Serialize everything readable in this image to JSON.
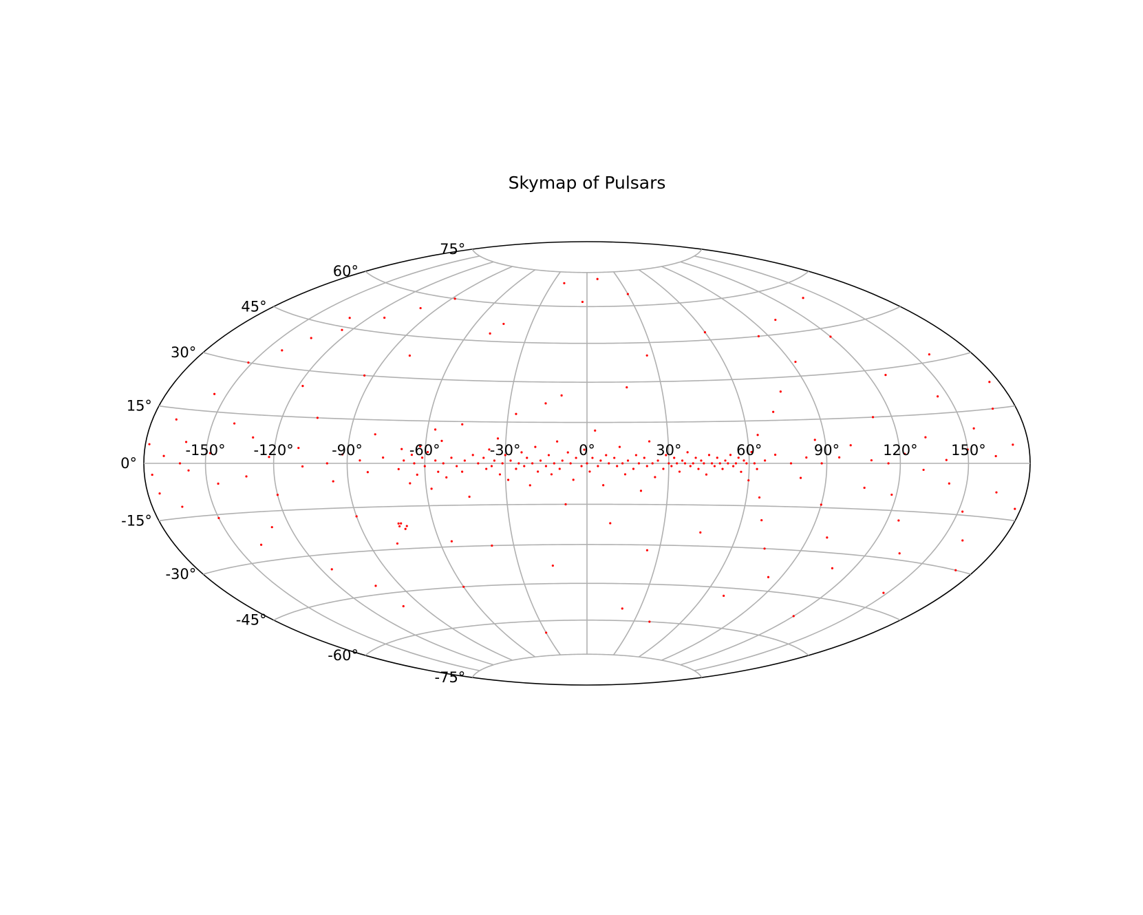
{
  "chart_data": {
    "type": "scatter",
    "projection": "hammer",
    "title": "Skymap of Pulsars",
    "xlabel": "",
    "ylabel": "",
    "xlim": [
      -180,
      180
    ],
    "ylim": [
      -90,
      90
    ],
    "grid": true,
    "marker_color": "#ff0000",
    "grid_color": "#b0b0b0",
    "x_tick_labels": [
      {
        "value": -150,
        "label": "-150°"
      },
      {
        "value": -120,
        "label": "-120°"
      },
      {
        "value": -90,
        "label": "-90°"
      },
      {
        "value": -60,
        "label": "-60°"
      },
      {
        "value": -30,
        "label": "-30°"
      },
      {
        "value": 0,
        "label": "0°"
      },
      {
        "value": 30,
        "label": "30°"
      },
      {
        "value": 60,
        "label": "60°"
      },
      {
        "value": 90,
        "label": "90°"
      },
      {
        "value": 120,
        "label": "120°"
      },
      {
        "value": 150,
        "label": "150°"
      }
    ],
    "y_tick_labels": [
      {
        "value": -75,
        "label": "-75°"
      },
      {
        "value": -60,
        "label": "-60°"
      },
      {
        "value": -45,
        "label": "-45°"
      },
      {
        "value": -30,
        "label": "-30°"
      },
      {
        "value": -15,
        "label": "-15°"
      },
      {
        "value": 0,
        "label": "0°"
      },
      {
        "value": 15,
        "label": "15°"
      },
      {
        "value": 30,
        "label": "30°"
      },
      {
        "value": 45,
        "label": "45°"
      },
      {
        "value": 60,
        "label": "60°"
      },
      {
        "value": 75,
        "label": "75°"
      }
    ],
    "series": [
      {
        "points": [
          [
            -178,
            5
          ],
          [
            -176,
            -3
          ],
          [
            -174,
            -8
          ],
          [
            -170,
            2
          ],
          [
            -168,
            12
          ],
          [
            -165,
            -12
          ],
          [
            -162,
            0
          ],
          [
            -160,
            6
          ],
          [
            -158,
            -2
          ],
          [
            -156,
            20
          ],
          [
            -152,
            30
          ],
          [
            -150,
            -16
          ],
          [
            -148,
            3
          ],
          [
            -145,
            -6
          ],
          [
            -142,
            35
          ],
          [
            -140,
            12
          ],
          [
            -138,
            -25
          ],
          [
            -135,
            40
          ],
          [
            -132,
            -4
          ],
          [
            -130,
            8
          ],
          [
            -128,
            -20
          ],
          [
            -125,
            44
          ],
          [
            -122,
            2
          ],
          [
            -120,
            -10
          ],
          [
            -118,
            25
          ],
          [
            -115,
            -35
          ],
          [
            -112,
            50
          ],
          [
            -110,
            5
          ],
          [
            -108,
            -1
          ],
          [
            -105,
            15
          ],
          [
            -102,
            -42
          ],
          [
            -100,
            55
          ],
          [
            -98,
            0
          ],
          [
            -96,
            -6
          ],
          [
            -94,
            30
          ],
          [
            -92,
            3
          ],
          [
            -90,
            -18
          ],
          [
            -88,
            60
          ],
          [
            -85,
            1
          ],
          [
            -82,
            -3
          ],
          [
            -80,
            10
          ],
          [
            -78,
            -28
          ],
          [
            -76,
            2
          ],
          [
            -74,
            -22
          ],
          [
            -73,
            -21
          ],
          [
            -72,
            -23
          ],
          [
            -71,
            -22
          ],
          [
            -74,
            -21
          ],
          [
            -70,
            -2
          ],
          [
            -69,
            5
          ],
          [
            -68,
            1
          ],
          [
            -66,
            -7
          ],
          [
            -65,
            3
          ],
          [
            -64,
            0
          ],
          [
            -63,
            -4
          ],
          [
            -62,
            6
          ],
          [
            -61,
            2
          ],
          [
            -60,
            -1
          ],
          [
            -59,
            4
          ],
          [
            -58,
            -9
          ],
          [
            -57,
            12
          ],
          [
            -56,
            1
          ],
          [
            -55,
            -3
          ],
          [
            -54,
            8
          ],
          [
            -53,
            0
          ],
          [
            -52,
            -5
          ],
          [
            -50,
            2
          ],
          [
            -49,
            48
          ],
          [
            -48,
            -1
          ],
          [
            -47,
            14
          ],
          [
            -46,
            -3
          ],
          [
            -45,
            1
          ],
          [
            -44,
            -12
          ],
          [
            -42,
            3
          ],
          [
            -40,
            0
          ],
          [
            -39,
            -30
          ],
          [
            -38,
            2
          ],
          [
            -37,
            -2
          ],
          [
            -36,
            5
          ],
          [
            -35,
            -1
          ],
          [
            -34,
            1
          ],
          [
            -33,
            9
          ],
          [
            -32,
            -4
          ],
          [
            -31,
            0
          ],
          [
            -30,
            3
          ],
          [
            -29,
            -6
          ],
          [
            -28,
            1
          ],
          [
            -27,
            18
          ],
          [
            -26,
            -2
          ],
          [
            -25,
            0
          ],
          [
            -24,
            4
          ],
          [
            -23,
            -1
          ],
          [
            -22,
            2
          ],
          [
            -21,
            -8
          ],
          [
            -20,
            0
          ],
          [
            -19,
            6
          ],
          [
            -18,
            -3
          ],
          [
            -17,
            1
          ],
          [
            -16,
            22
          ],
          [
            -15,
            -1
          ],
          [
            -14,
            3
          ],
          [
            -13,
            -4
          ],
          [
            -12,
            0
          ],
          [
            -11,
            8
          ],
          [
            -10,
            -2
          ],
          [
            -9,
            1
          ],
          [
            -8,
            -15
          ],
          [
            -7,
            4
          ],
          [
            -6,
            0
          ],
          [
            -5,
            -6
          ],
          [
            -4,
            2
          ],
          [
            -3,
            62
          ],
          [
            -2,
            -1
          ],
          [
            -1,
            5
          ],
          [
            0,
            0
          ],
          [
            1,
            -3
          ],
          [
            2,
            2
          ],
          [
            3,
            12
          ],
          [
            4,
            -1
          ],
          [
            5,
            1
          ],
          [
            6,
            -8
          ],
          [
            7,
            3
          ],
          [
            8,
            0
          ],
          [
            9,
            -22
          ],
          [
            10,
            2
          ],
          [
            11,
            -1
          ],
          [
            12,
            6
          ],
          [
            13,
            0
          ],
          [
            14,
            -4
          ],
          [
            15,
            1
          ],
          [
            16,
            28
          ],
          [
            17,
            -2
          ],
          [
            18,
            3
          ],
          [
            19,
            0
          ],
          [
            20,
            -10
          ],
          [
            21,
            2
          ],
          [
            22,
            -1
          ],
          [
            23,
            8
          ],
          [
            24,
            0
          ],
          [
            25,
            -5
          ],
          [
            26,
            1
          ],
          [
            27,
            40
          ],
          [
            28,
            -2
          ],
          [
            29,
            3
          ],
          [
            30,
            0
          ],
          [
            31,
            -1
          ],
          [
            32,
            2
          ],
          [
            33,
            0
          ],
          [
            34,
            -3
          ],
          [
            35,
            1
          ],
          [
            36,
            0
          ],
          [
            37,
            4
          ],
          [
            38,
            -1
          ],
          [
            39,
            0
          ],
          [
            40,
            2
          ],
          [
            41,
            -2
          ],
          [
            42,
            1
          ],
          [
            43,
            0
          ],
          [
            44,
            -4
          ],
          [
            45,
            3
          ],
          [
            46,
            0
          ],
          [
            47,
            -1
          ],
          [
            48,
            2
          ],
          [
            49,
            0
          ],
          [
            50,
            -2
          ],
          [
            51,
            1
          ],
          [
            52,
            0
          ],
          [
            53,
            3
          ],
          [
            54,
            -1
          ],
          [
            55,
            0
          ],
          [
            56,
            2
          ],
          [
            57,
            -3
          ],
          [
            58,
            1
          ],
          [
            59,
            0
          ],
          [
            60,
            -6
          ],
          [
            61,
            4
          ],
          [
            62,
            0
          ],
          [
            63,
            -2
          ],
          [
            64,
            10
          ],
          [
            65,
            -12
          ],
          [
            66,
            1
          ],
          [
            68,
            -20
          ],
          [
            70,
            3
          ],
          [
            72,
            18
          ],
          [
            74,
            -30
          ],
          [
            76,
            0
          ],
          [
            78,
            25
          ],
          [
            80,
            -5
          ],
          [
            82,
            2
          ],
          [
            84,
            -40
          ],
          [
            86,
            8
          ],
          [
            88,
            0
          ],
          [
            90,
            -14
          ],
          [
            92,
            35
          ],
          [
            95,
            2
          ],
          [
            98,
            -25
          ],
          [
            100,
            6
          ],
          [
            103,
            50
          ],
          [
            106,
            -8
          ],
          [
            108,
            1
          ],
          [
            110,
            -35
          ],
          [
            112,
            15
          ],
          [
            115,
            0
          ],
          [
            118,
            -10
          ],
          [
            120,
            42
          ],
          [
            122,
            3
          ],
          [
            125,
            -18
          ],
          [
            128,
            28
          ],
          [
            130,
            -2
          ],
          [
            132,
            8
          ],
          [
            135,
            -28
          ],
          [
            138,
            55
          ],
          [
            140,
            1
          ],
          [
            142,
            -6
          ],
          [
            145,
            20
          ],
          [
            148,
            -40
          ],
          [
            150,
            4
          ],
          [
            152,
            -14
          ],
          [
            155,
            10
          ],
          [
            158,
            32
          ],
          [
            160,
            -22
          ],
          [
            163,
            2
          ],
          [
            165,
            -8
          ],
          [
            168,
            15
          ],
          [
            170,
            -30
          ],
          [
            172,
            5
          ],
          [
            175,
            22
          ],
          [
            177,
            -12
          ],
          [
            -60,
            -45
          ],
          [
            -30,
            -65
          ],
          [
            20,
            -55
          ],
          [
            40,
            -60
          ],
          [
            -20,
            70
          ],
          [
            10,
            72
          ],
          [
            30,
            65
          ],
          [
            -45,
            52
          ],
          [
            60,
            48
          ],
          [
            -100,
            -50
          ],
          [
            120,
            -52
          ],
          [
            -130,
            48
          ],
          [
            70,
            -48
          ],
          [
            -15,
            -38
          ],
          [
            25,
            -32
          ],
          [
            -80,
            38
          ],
          [
            85,
            45
          ],
          [
            -55,
            -28
          ],
          [
            45,
            -25
          ],
          [
            -10,
            25
          ]
        ]
      }
    ]
  }
}
